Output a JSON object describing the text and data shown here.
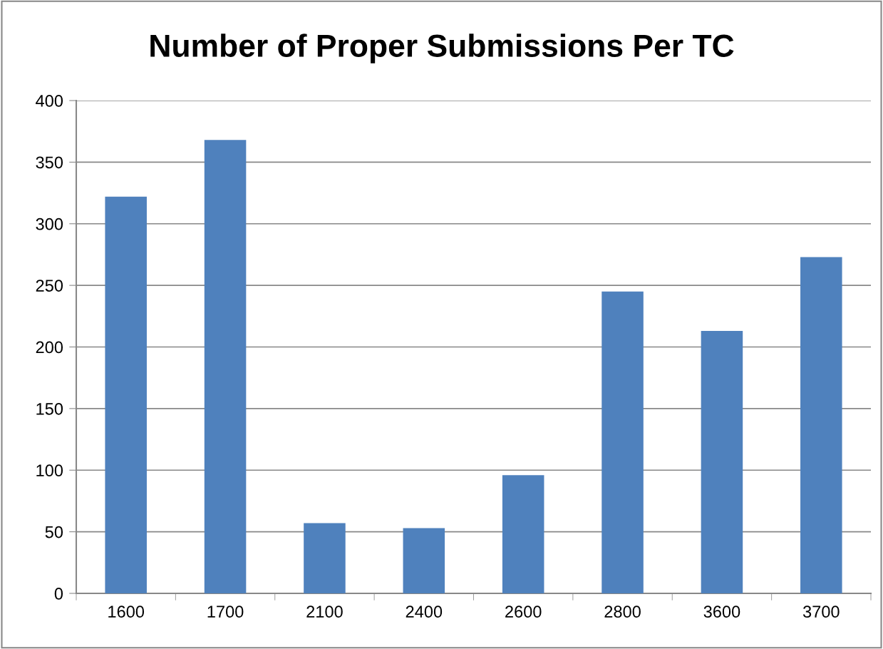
{
  "chart_data": {
    "type": "bar",
    "title": "Number of Proper Submissions Per TC",
    "categories": [
      "1600",
      "1700",
      "2100",
      "2400",
      "2600",
      "2800",
      "3600",
      "3700"
    ],
    "values": [
      322,
      368,
      57,
      53,
      96,
      245,
      213,
      273
    ],
    "color": "#4f81bd",
    "ylim": [
      0,
      400
    ],
    "yticks": [
      0,
      50,
      100,
      150,
      200,
      250,
      300,
      350,
      400
    ],
    "grid": "y",
    "legend": false
  }
}
